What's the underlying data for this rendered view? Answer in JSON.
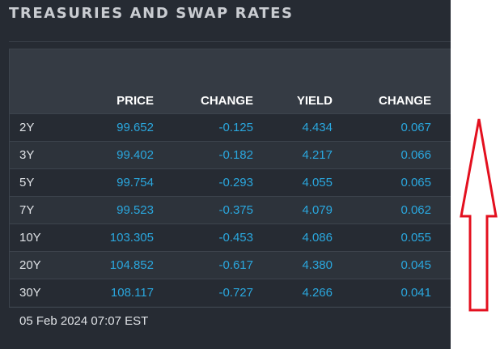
{
  "widget": {
    "title": "TREASURIES AND SWAP RATES",
    "timestamp": "05 Feb 2024 07:07 EST"
  },
  "table": {
    "columns": [
      "",
      "PRICE",
      "CHANGE",
      "YIELD",
      "CHANGE"
    ],
    "rows": [
      {
        "tenor": "2Y",
        "price": "99.652",
        "price_change": "-0.125",
        "yield": "4.434",
        "yield_change": "0.067"
      },
      {
        "tenor": "3Y",
        "price": "99.402",
        "price_change": "-0.182",
        "yield": "4.217",
        "yield_change": "0.066"
      },
      {
        "tenor": "5Y",
        "price": "99.754",
        "price_change": "-0.293",
        "yield": "4.055",
        "yield_change": "0.065"
      },
      {
        "tenor": "7Y",
        "price": "99.523",
        "price_change": "-0.375",
        "yield": "4.079",
        "yield_change": "0.062"
      },
      {
        "tenor": "10Y",
        "price": "103.305",
        "price_change": "-0.453",
        "yield": "4.086",
        "yield_change": "0.055"
      },
      {
        "tenor": "20Y",
        "price": "104.852",
        "price_change": "-0.617",
        "yield": "4.380",
        "yield_change": "0.045"
      },
      {
        "tenor": "30Y",
        "price": "108.117",
        "price_change": "-0.727",
        "yield": "4.266",
        "yield_change": "0.041"
      }
    ]
  },
  "annotation": {
    "icon": "up-arrow-icon",
    "color": "#e3101f"
  },
  "colors": {
    "panel_background": "#262b33",
    "header_background": "#353b44",
    "value_text": "#2aa7de",
    "label_text": "#dfe2e6"
  }
}
